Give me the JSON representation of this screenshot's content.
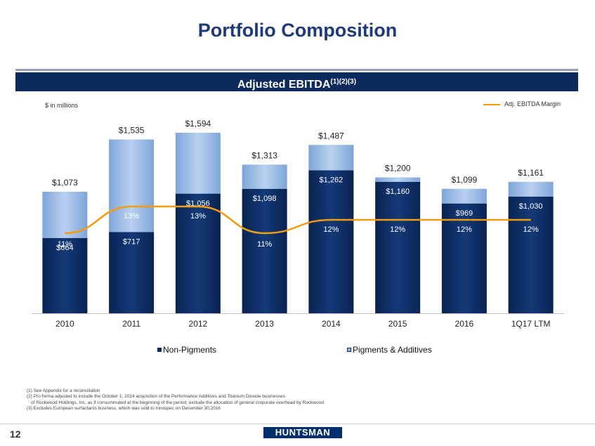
{
  "page": {
    "title": "Portfolio Composition",
    "banner_text": "Adjusted EBITDA",
    "banner_superscript": "(1)(2)(3)",
    "units_note": "$ in millions",
    "page_number": "12",
    "logo_text": "HUNTSMAN"
  },
  "footnotes": [
    "(1) See Appendix for a reconciliation",
    "(2) Pro forma adjusted to include the October 1, 2014 acquisition of the Performance Additives and Titanium Dioxide businesses",
    "of Rockwood Holdings, Inc. as if consummated at the beginning of the period; exclude the allocation of general corporate overhead by Rockwood",
    "(3) Excludes European surfactants business, which was sold to Innospec on December 30,2016"
  ],
  "chart_data": {
    "type": "bar",
    "stacked": true,
    "title": "Adjusted EBITDA",
    "categories": [
      "2010",
      "2011",
      "2012",
      "2013",
      "2014",
      "2015",
      "2016",
      "1Q17 LTM"
    ],
    "series": [
      {
        "name": "Non-Pigments",
        "values": [
          664,
          717,
          1056,
          1098,
          1262,
          1160,
          969,
          1030
        ],
        "labels": [
          "$664",
          "$717",
          "$1,056",
          "$1,098",
          "$1,262",
          "$1,160",
          "$969",
          "$1,030"
        ],
        "color": "#0c2a5b"
      },
      {
        "name": "Pigments & Additives",
        "values": [
          409,
          818,
          538,
          215,
          225,
          40,
          130,
          131
        ],
        "color": "#8fb3e0"
      }
    ],
    "totals": [
      1073,
      1535,
      1594,
      1313,
      1487,
      1200,
      1099,
      1161
    ],
    "total_labels": [
      "$1,073",
      "$1,535",
      "$1,594",
      "$1,313",
      "$1,487",
      "$1,200",
      "$1,099",
      "$1,161"
    ],
    "line_series": {
      "name": "Adj. EBITDA Margin",
      "values": [
        11,
        13,
        13,
        11,
        12,
        12,
        12,
        12
      ],
      "labels": [
        "11%",
        "13%",
        "13%",
        "11%",
        "12%",
        "12%",
        "12%",
        "12%"
      ],
      "color": "#f39c12"
    },
    "ylim": [
      0,
      1650
    ],
    "xlabel": "",
    "ylabel": "",
    "legend": [
      "Non-Pigments",
      "Pigments & Additives"
    ]
  }
}
